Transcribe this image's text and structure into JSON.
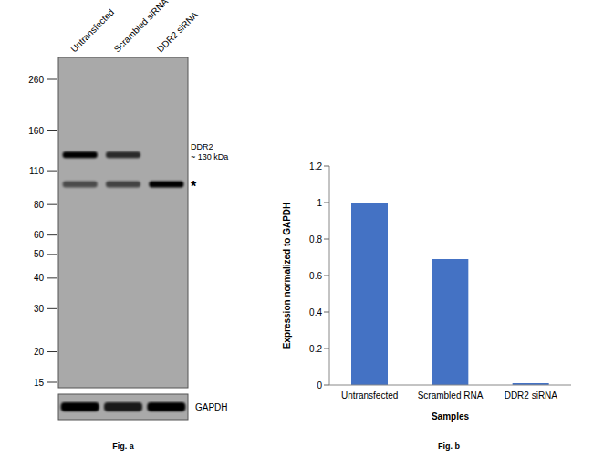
{
  "figure_a": {
    "type": "western_blot",
    "lanes": [
      "Untransfected",
      "Scrambled siRNA",
      "DDR2 siRNA"
    ],
    "markers_kda": [
      260,
      160,
      110,
      80,
      60,
      50,
      40,
      30,
      20,
      15
    ],
    "bands": [
      {
        "label": "DDR2",
        "sublabel": "~ 130 kDa",
        "intensity": [
          1,
          0.75,
          0
        ]
      },
      {
        "label": "*",
        "intensity": [
          0.55,
          0.6,
          1
        ]
      }
    ],
    "loading_control": {
      "label": "GAPDH",
      "intensity": [
        1,
        0.85,
        1
      ]
    },
    "caption": "Fig. a"
  },
  "chart_data": {
    "type": "bar",
    "categories": [
      "Untransfected",
      "Scrambled RNA",
      "DDR2 siRNA"
    ],
    "values": [
      1,
      0.69,
      0.01
    ],
    "color": "#4472c4",
    "ylim": [
      0,
      1.2
    ],
    "yticks": [
      0,
      0.2,
      0.4,
      0.6,
      0.8,
      1,
      1.2
    ],
    "ylabel": "Expression normalized to GAPDH",
    "xlabel": "Samples",
    "grid": false,
    "caption": "Fig. b"
  }
}
